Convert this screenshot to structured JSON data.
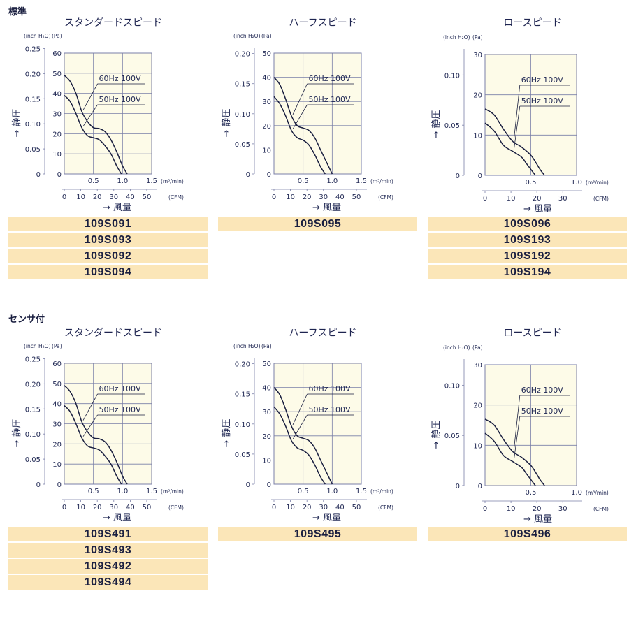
{
  "sections": [
    {
      "label": "標準",
      "panels": [
        {
          "title": "スタンダードスピード",
          "models": [
            "109S091",
            "109S093",
            "109S092",
            "109S094"
          ],
          "chart_data": {
            "type": "line",
            "title": "スタンダードスピード",
            "ylabel": "静圧",
            "xlabel": "風量",
            "y_unit_left": "(inch H₂O)",
            "y_unit_right": "(Pa)",
            "x_unit_top": "(m³/min)",
            "x_unit_bottom": "(CFM)",
            "ylim_pa": [
              0,
              60
            ],
            "xlim_m3": [
              0,
              1.5
            ],
            "y_ticks_pa": [
              "0",
              "10",
              "20",
              "30",
              "40",
              "50",
              "60"
            ],
            "y_ticks_inch": [
              "0",
              "0.05",
              "0.10",
              "0.15",
              "0.20",
              "0.25"
            ],
            "x_ticks_m3": [
              "0.5",
              "1.0",
              "1.5"
            ],
            "x_ticks_cfm": [
              "0",
              "10",
              "20",
              "30",
              "40",
              "50"
            ],
            "series": [
              {
                "name": "60Hz 100V",
                "x": [
                  0,
                  0.1,
                  0.2,
                  0.3,
                  0.4,
                  0.5,
                  0.6,
                  0.7,
                  0.8,
                  0.9,
                  1.0,
                  1.08
                ],
                "y": [
                  49,
                  46,
                  40,
                  31,
                  26,
                  23,
                  22.5,
                  21,
                  17,
                  11,
                  4,
                  0
                ]
              },
              {
                "name": "50Hz 100V",
                "x": [
                  0,
                  0.1,
                  0.2,
                  0.3,
                  0.4,
                  0.5,
                  0.6,
                  0.7,
                  0.8,
                  0.9,
                  0.98
                ],
                "y": [
                  39,
                  36,
                  30,
                  23,
                  19,
                  18,
                  17,
                  14,
                  10,
                  4,
                  0
                ]
              }
            ]
          }
        },
        {
          "title": "ハーフスピード",
          "models": [
            "109S095"
          ],
          "chart_data": {
            "type": "line",
            "title": "ハーフスピード",
            "ylabel": "静圧",
            "xlabel": "風量",
            "y_unit_left": "(inch H₂O)",
            "y_unit_right": "(Pa)",
            "x_unit_top": "(m³/min)",
            "x_unit_bottom": "(CFM)",
            "ylim_pa": [
              0,
              50
            ],
            "xlim_m3": [
              0,
              1.5
            ],
            "y_ticks_pa": [
              "0",
              "10",
              "20",
              "30",
              "40",
              "50"
            ],
            "y_ticks_inch": [
              "0",
              "0.05",
              "0.10",
              "0.15",
              "0.20"
            ],
            "x_ticks_m3": [
              "0.5",
              "1.0",
              "1.5"
            ],
            "x_ticks_cfm": [
              "0",
              "10",
              "20",
              "30",
              "40",
              "50"
            ],
            "series": [
              {
                "name": "60Hz 100V",
                "x": [
                  0,
                  0.1,
                  0.2,
                  0.3,
                  0.4,
                  0.5,
                  0.6,
                  0.7,
                  0.8,
                  0.9,
                  1.0
                ],
                "y": [
                  40,
                  37,
                  31,
                  24,
                  20,
                  19,
                  18,
                  15,
                  10,
                  5,
                  0
                ]
              },
              {
                "name": "50Hz 100V",
                "x": [
                  0,
                  0.1,
                  0.2,
                  0.3,
                  0.4,
                  0.5,
                  0.6,
                  0.7,
                  0.8,
                  0.88
                ],
                "y": [
                  32,
                  29,
                  24,
                  18,
                  15,
                  14,
                  12,
                  8,
                  3,
                  0
                ]
              }
            ]
          }
        },
        {
          "title": "ロースピード",
          "models": [
            "109S096",
            "109S193",
            "109S192",
            "109S194"
          ],
          "chart_data": {
            "type": "line",
            "title": "ロースピード",
            "ylabel": "静圧",
            "xlabel": "風量",
            "y_unit_left": "(inch H₂O)",
            "y_unit_right": "(Pa)",
            "x_unit_top": "(m³/min)",
            "x_unit_bottom": "(CFM)",
            "ylim_pa": [
              0,
              30
            ],
            "xlim_m3": [
              0,
              1.0
            ],
            "y_ticks_pa": [
              "0",
              "10",
              "20",
              "30"
            ],
            "y_ticks_inch": [
              "0",
              "0.05",
              "0.10"
            ],
            "x_ticks_m3": [
              "0.5",
              "1.0"
            ],
            "x_ticks_cfm": [
              "0",
              "10",
              "20",
              "30"
            ],
            "series": [
              {
                "name": "60Hz 100V",
                "x": [
                  0,
                  0.1,
                  0.2,
                  0.3,
                  0.4,
                  0.5,
                  0.56,
                  0.6,
                  0.65
                ],
                "y": [
                  16.5,
                  15,
                  11.5,
                  8.5,
                  7,
                  5,
                  3,
                  1.5,
                  0
                ]
              },
              {
                "name": "50Hz 100V",
                "x": [
                  0,
                  0.1,
                  0.2,
                  0.3,
                  0.4,
                  0.45,
                  0.5,
                  0.55
                ],
                "y": [
                  13,
                  11,
                  7.5,
                  6,
                  4.5,
                  3,
                  1.5,
                  0
                ]
              }
            ]
          }
        }
      ]
    },
    {
      "label": "センサ付",
      "panels": [
        {
          "title": "スタンダードスピード",
          "models": [
            "109S491",
            "109S493",
            "109S492",
            "109S494"
          ],
          "chart_data": {
            "type": "line",
            "title": "スタンダードスピード",
            "ylabel": "静圧",
            "xlabel": "風量",
            "y_unit_left": "(inch H₂O)",
            "y_unit_right": "(Pa)",
            "x_unit_top": "(m³/min)",
            "x_unit_bottom": "(CFM)",
            "ylim_pa": [
              0,
              60
            ],
            "xlim_m3": [
              0,
              1.5
            ],
            "y_ticks_pa": [
              "0",
              "10",
              "20",
              "30",
              "40",
              "50",
              "60"
            ],
            "y_ticks_inch": [
              "0",
              "0.05",
              "0.10",
              "0.15",
              "0.20",
              "0.25"
            ],
            "x_ticks_m3": [
              "0.5",
              "1.0",
              "1.5"
            ],
            "x_ticks_cfm": [
              "0",
              "10",
              "20",
              "30",
              "40",
              "50"
            ],
            "series": [
              {
                "name": "60Hz 100V",
                "x": [
                  0,
                  0.1,
                  0.2,
                  0.3,
                  0.4,
                  0.5,
                  0.6,
                  0.7,
                  0.8,
                  0.9,
                  1.0,
                  1.08
                ],
                "y": [
                  49,
                  46,
                  40,
                  31,
                  26,
                  23,
                  22.5,
                  21,
                  17,
                  11,
                  4,
                  0
                ]
              },
              {
                "name": "50Hz 100V",
                "x": [
                  0,
                  0.1,
                  0.2,
                  0.3,
                  0.4,
                  0.5,
                  0.6,
                  0.7,
                  0.8,
                  0.9,
                  0.98
                ],
                "y": [
                  39,
                  36,
                  30,
                  23,
                  19,
                  18,
                  17,
                  14,
                  10,
                  4,
                  0
                ]
              }
            ]
          }
        },
        {
          "title": "ハーフスピード",
          "models": [
            "109S495"
          ],
          "chart_data": {
            "type": "line",
            "title": "ハーフスピード",
            "ylabel": "静圧",
            "xlabel": "風量",
            "y_unit_left": "(inch H₂O)",
            "y_unit_right": "(Pa)",
            "x_unit_top": "(m³/min)",
            "x_unit_bottom": "(CFM)",
            "ylim_pa": [
              0,
              50
            ],
            "xlim_m3": [
              0,
              1.5
            ],
            "y_ticks_pa": [
              "0",
              "10",
              "20",
              "30",
              "40",
              "50"
            ],
            "y_ticks_inch": [
              "0",
              "0.05",
              "0.10",
              "0.15",
              "0.20"
            ],
            "x_ticks_m3": [
              "0.5",
              "1.0",
              "1.5"
            ],
            "x_ticks_cfm": [
              "0",
              "10",
              "20",
              "30",
              "40",
              "50"
            ],
            "series": [
              {
                "name": "60Hz 100V",
                "x": [
                  0,
                  0.1,
                  0.2,
                  0.3,
                  0.4,
                  0.5,
                  0.6,
                  0.7,
                  0.8,
                  0.9,
                  1.0
                ],
                "y": [
                  40,
                  37,
                  31,
                  24,
                  20,
                  19,
                  18,
                  15,
                  10,
                  5,
                  0
                ]
              },
              {
                "name": "50Hz 100V",
                "x": [
                  0,
                  0.1,
                  0.2,
                  0.3,
                  0.4,
                  0.5,
                  0.6,
                  0.7,
                  0.8,
                  0.88
                ],
                "y": [
                  32,
                  29,
                  24,
                  18,
                  15,
                  14,
                  12,
                  8,
                  3,
                  0
                ]
              }
            ]
          }
        },
        {
          "title": "ロースピード",
          "models": [
            "109S496"
          ],
          "chart_data": {
            "type": "line",
            "title": "ロースピード",
            "ylabel": "静圧",
            "xlabel": "風量",
            "y_unit_left": "(inch H₂O)",
            "y_unit_right": "(Pa)",
            "x_unit_top": "(m³/min)",
            "x_unit_bottom": "(CFM)",
            "ylim_pa": [
              0,
              30
            ],
            "xlim_m3": [
              0,
              1.0
            ],
            "y_ticks_pa": [
              "0",
              "10",
              "20",
              "30"
            ],
            "y_ticks_inch": [
              "0",
              "0.05",
              "0.10"
            ],
            "x_ticks_m3": [
              "0.5",
              "1.0"
            ],
            "x_ticks_cfm": [
              "0",
              "10",
              "20",
              "30"
            ],
            "series": [
              {
                "name": "60Hz 100V",
                "x": [
                  0,
                  0.1,
                  0.2,
                  0.3,
                  0.4,
                  0.5,
                  0.56,
                  0.6,
                  0.65
                ],
                "y": [
                  16.5,
                  15,
                  11.5,
                  8.5,
                  7,
                  5,
                  3,
                  1.5,
                  0
                ]
              },
              {
                "name": "50Hz 100V",
                "x": [
                  0,
                  0.1,
                  0.2,
                  0.3,
                  0.4,
                  0.45,
                  0.5,
                  0.55
                ],
                "y": [
                  13,
                  11,
                  7.5,
                  6,
                  4.5,
                  3,
                  1.5,
                  0
                ]
              }
            ]
          }
        }
      ]
    }
  ],
  "colors": {
    "grid": "#7a7fa8",
    "curve": "#1a1f40",
    "plot_bg": "#fdfbe8",
    "model_bar": "#fbe6b8",
    "text": "#222a55"
  }
}
